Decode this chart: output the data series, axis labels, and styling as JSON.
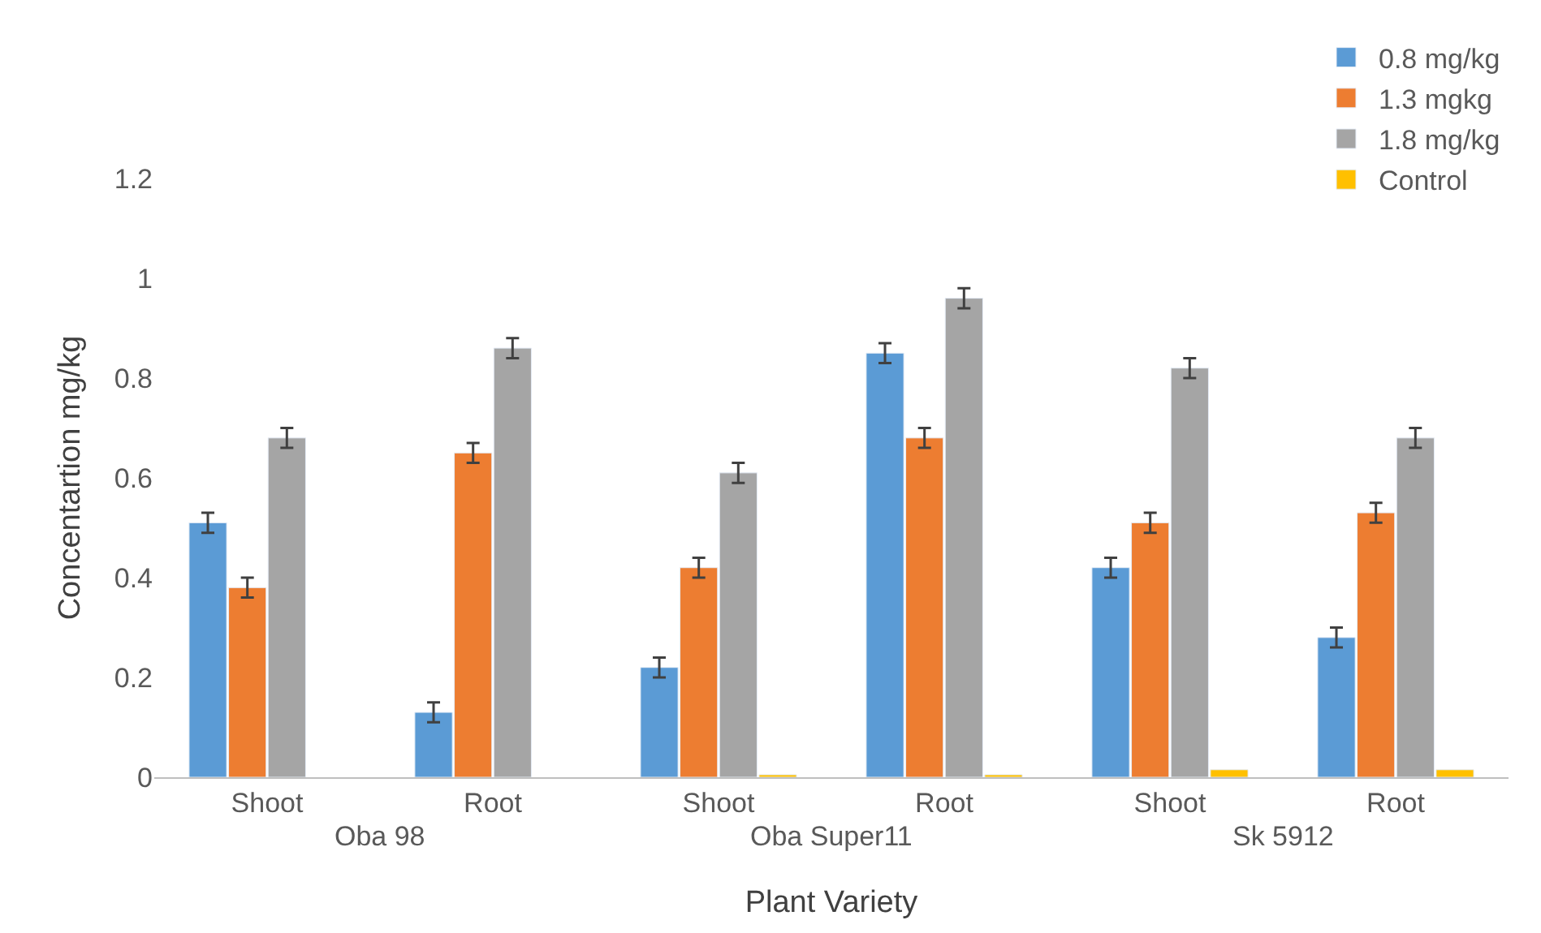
{
  "chart_data": {
    "type": "bar",
    "xlabel": "Plant Variety",
    "ylabel": "Concentartion mg/kg",
    "categories": [
      "Shoot",
      "Root",
      "Shoot",
      "Root",
      "Shoot",
      "Root"
    ],
    "annotations": [
      "Oba 98",
      "Oba Super11",
      "Sk 5912"
    ],
    "series": [
      {
        "name": "0.8 mg/kg",
        "color": "#5b9bd5",
        "values": [
          0.51,
          0.13,
          0.22,
          0.85,
          0.42,
          0.28
        ],
        "errors": [
          0.02,
          0.02,
          0.02,
          0.02,
          0.02,
          0.02
        ]
      },
      {
        "name": "1.3 mgkg",
        "color": "#ed7d31",
        "values": [
          0.38,
          0.65,
          0.42,
          0.68,
          0.51,
          0.53
        ],
        "errors": [
          0.02,
          0.02,
          0.02,
          0.02,
          0.02,
          0.02
        ]
      },
      {
        "name": "1.8 mg/kg",
        "color": "#a5a5a5",
        "values": [
          0.68,
          0.86,
          0.61,
          0.96,
          0.82,
          0.68
        ],
        "errors": [
          0.02,
          0.02,
          0.02,
          0.02,
          0.02,
          0.02
        ]
      },
      {
        "name": "Control",
        "color": "#ffc000",
        "values": [
          null,
          null,
          0.005,
          0.005,
          0.015,
          0.015
        ]
      }
    ],
    "ylim": [
      0,
      1.2
    ],
    "yticks": [
      0,
      0.2,
      0.4,
      0.6,
      0.8,
      1,
      1.2
    ],
    "legend": "top right"
  }
}
